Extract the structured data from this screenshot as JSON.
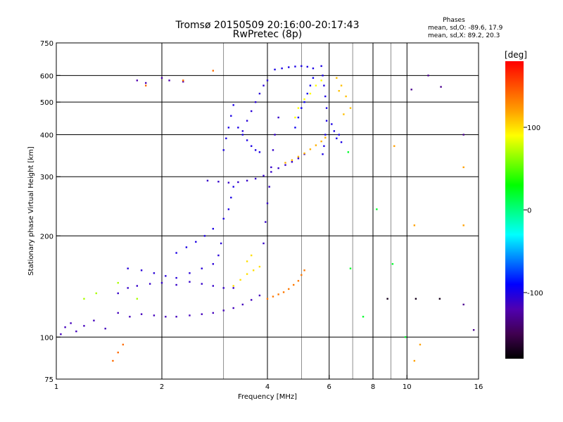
{
  "chart_data": {
    "type": "scatter",
    "title": "Tromsø 20150509 20:16:00-20:17:43",
    "subtitle": "RwPretec (8p)",
    "xlabel": "Frequency [MHz]",
    "ylabel": "Stationary phase Virtual Height [km]",
    "x_scale": "log",
    "y_scale": "log",
    "xlim": [
      1,
      16
    ],
    "ylim": [
      75,
      750
    ],
    "x_ticks": [
      1,
      2,
      4,
      6,
      8,
      10,
      16
    ],
    "x_gridlines": [
      2,
      4,
      6,
      8,
      10
    ],
    "x_minor_gridlines": [
      3,
      5,
      7,
      9
    ],
    "y_ticks": [
      75,
      100,
      200,
      300,
      400,
      500,
      600,
      750
    ],
    "y_gridlines": [
      100,
      200,
      300,
      400,
      500,
      600
    ],
    "grid": true,
    "phases_box": {
      "heading": "Phases",
      "line_o": "mean, sd,O: -89.6, 17.9",
      "line_x": "mean, sd,X:  89.2, 20.3"
    },
    "colorbar": {
      "label": "[deg]",
      "range": [
        -180,
        180
      ],
      "ticks": [
        100,
        0,
        -100
      ],
      "colors": [
        "#000000",
        "#400050",
        "#5000b0",
        "#0000ff",
        "#0080ff",
        "#00ffff",
        "#00ff80",
        "#00ff00",
        "#80ff00",
        "#ffff00",
        "#ffa000",
        "#ff5000",
        "#ff0000"
      ]
    },
    "series": [
      {
        "phase": -115,
        "points": [
          [
            1.03,
            102
          ],
          [
            1.06,
            107
          ],
          [
            1.1,
            110
          ],
          [
            1.14,
            104
          ],
          [
            1.2,
            108
          ],
          [
            1.28,
            112
          ],
          [
            1.38,
            106
          ],
          [
            1.5,
            118
          ],
          [
            1.62,
            115
          ],
          [
            1.75,
            117
          ],
          [
            1.9,
            116
          ],
          [
            2.05,
            115
          ],
          [
            2.2,
            115
          ],
          [
            2.4,
            116
          ],
          [
            2.6,
            117
          ],
          [
            2.8,
            118
          ],
          [
            3.0,
            120
          ],
          [
            3.2,
            122
          ],
          [
            3.4,
            125
          ],
          [
            3.6,
            129
          ],
          [
            3.8,
            133
          ]
        ]
      },
      {
        "phase": -110,
        "points": [
          [
            1.5,
            135
          ],
          [
            1.6,
            140
          ],
          [
            1.7,
            142
          ],
          [
            1.85,
            144
          ],
          [
            2.0,
            145
          ],
          [
            2.2,
            143
          ],
          [
            2.4,
            146
          ],
          [
            2.6,
            144
          ],
          [
            2.8,
            142
          ],
          [
            3.0,
            140
          ],
          [
            3.2,
            140
          ]
        ]
      },
      {
        "phase": -105,
        "points": [
          [
            1.6,
            160
          ],
          [
            1.75,
            158
          ],
          [
            1.9,
            155
          ],
          [
            2.05,
            152
          ],
          [
            2.2,
            150
          ],
          [
            2.4,
            155
          ],
          [
            2.6,
            160
          ],
          [
            2.8,
            165
          ],
          [
            2.9,
            175
          ],
          [
            2.95,
            190
          ]
        ]
      },
      {
        "phase": -100,
        "points": [
          [
            2.2,
            178
          ],
          [
            2.35,
            185
          ],
          [
            2.5,
            192
          ],
          [
            2.65,
            200
          ],
          [
            2.8,
            210
          ],
          [
            3.0,
            225
          ],
          [
            3.1,
            240
          ],
          [
            3.15,
            260
          ],
          [
            3.2,
            280
          ]
        ]
      },
      {
        "phase": -110,
        "points": [
          [
            2.7,
            292
          ],
          [
            2.9,
            290
          ],
          [
            3.1,
            288
          ],
          [
            3.3,
            289
          ],
          [
            3.5,
            292
          ],
          [
            3.7,
            296
          ],
          [
            3.9,
            302
          ],
          [
            4.1,
            310
          ],
          [
            4.3,
            318
          ],
          [
            4.5,
            325
          ],
          [
            4.7,
            332
          ],
          [
            4.9,
            340
          ],
          [
            5.1,
            350
          ]
        ]
      },
      {
        "phase": -100,
        "points": [
          [
            3.0,
            360
          ],
          [
            3.05,
            390
          ],
          [
            3.1,
            420
          ],
          [
            3.15,
            455
          ],
          [
            3.2,
            490
          ],
          [
            3.3,
            420
          ],
          [
            3.4,
            400
          ],
          [
            3.5,
            385
          ],
          [
            3.6,
            370
          ],
          [
            3.7,
            360
          ],
          [
            3.8,
            355
          ]
        ]
      },
      {
        "phase": -105,
        "points": [
          [
            3.4,
            410
          ],
          [
            3.5,
            440
          ],
          [
            3.6,
            470
          ],
          [
            3.7,
            500
          ],
          [
            3.8,
            530
          ],
          [
            3.9,
            560
          ],
          [
            4.0,
            580
          ]
        ]
      },
      {
        "phase": -110,
        "points": [
          [
            3.9,
            190
          ],
          [
            3.95,
            220
          ],
          [
            4.0,
            250
          ],
          [
            4.05,
            280
          ],
          [
            4.1,
            320
          ],
          [
            4.15,
            360
          ],
          [
            4.2,
            400
          ],
          [
            4.3,
            450
          ]
        ]
      },
      {
        "phase": -100,
        "points": [
          [
            5.7,
            640
          ],
          [
            5.75,
            600
          ],
          [
            5.8,
            560
          ],
          [
            5.85,
            520
          ],
          [
            5.9,
            480
          ],
          [
            5.9,
            440
          ],
          [
            5.85,
            400
          ],
          [
            5.8,
            370
          ],
          [
            5.75,
            350
          ]
        ]
      },
      {
        "phase": -95,
        "points": [
          [
            4.8,
            420
          ],
          [
            4.9,
            450
          ],
          [
            5.0,
            480
          ],
          [
            5.1,
            500
          ],
          [
            5.2,
            530
          ],
          [
            5.3,
            560
          ],
          [
            5.4,
            590
          ]
        ]
      },
      {
        "phase": -100,
        "points": [
          [
            4.2,
            625
          ],
          [
            4.4,
            630
          ],
          [
            4.6,
            635
          ],
          [
            4.8,
            638
          ],
          [
            5.0,
            640
          ],
          [
            5.2,
            637
          ],
          [
            5.4,
            630
          ]
        ]
      },
      {
        "phase": -120,
        "points": [
          [
            2.0,
            590
          ],
          [
            2.1,
            580
          ],
          [
            2.3,
            575
          ],
          [
            1.8,
            570
          ],
          [
            1.7,
            580
          ]
        ]
      },
      {
        "phase": 100,
        "points": [
          [
            3.2,
            142
          ],
          [
            3.35,
            148
          ],
          [
            3.5,
            154
          ],
          [
            3.65,
            158
          ],
          [
            3.8,
            162
          ],
          [
            3.5,
            168
          ],
          [
            3.6,
            175
          ]
        ]
      },
      {
        "phase": 135,
        "points": [
          [
            4.0,
            130
          ],
          [
            4.15,
            132
          ],
          [
            4.3,
            134
          ],
          [
            4.45,
            136
          ],
          [
            4.6,
            139
          ],
          [
            4.75,
            143
          ],
          [
            4.9,
            147
          ],
          [
            5.0,
            153
          ],
          [
            5.1,
            158
          ]
        ]
      },
      {
        "phase": 115,
        "points": [
          [
            4.5,
            330
          ],
          [
            4.7,
            336
          ],
          [
            4.9,
            344
          ],
          [
            5.1,
            352
          ],
          [
            5.3,
            362
          ],
          [
            5.5,
            372
          ],
          [
            5.7,
            382
          ],
          [
            5.85,
            392
          ]
        ]
      },
      {
        "phase": 90,
        "points": [
          [
            4.8,
            450
          ],
          [
            4.9,
            480
          ],
          [
            5.1,
            510
          ],
          [
            5.3,
            530
          ],
          [
            5.5,
            560
          ],
          [
            5.7,
            580
          ]
        ]
      },
      {
        "phase": 110,
        "points": [
          [
            6.3,
            590
          ],
          [
            6.5,
            560
          ],
          [
            6.7,
            520
          ],
          [
            6.9,
            480
          ],
          [
            6.6,
            460
          ],
          [
            6.4,
            540
          ]
        ]
      },
      {
        "phase": -100,
        "points": [
          [
            6.1,
            430
          ],
          [
            6.2,
            410
          ],
          [
            6.3,
            390
          ],
          [
            6.4,
            400
          ],
          [
            6.5,
            380
          ]
        ]
      },
      {
        "phase": -130,
        "points": [
          [
            11.5,
            600
          ],
          [
            14.5,
            400
          ],
          [
            14.5,
            125
          ],
          [
            15.5,
            105
          ],
          [
            12.5,
            555
          ],
          [
            10.3,
            545
          ]
        ]
      },
      {
        "phase": 120,
        "points": [
          [
            10.9,
            95
          ],
          [
            10.5,
            85
          ],
          [
            9.2,
            370
          ],
          [
            10.5,
            215
          ],
          [
            14.5,
            215
          ],
          [
            14.5,
            320
          ]
        ]
      },
      {
        "phase": 20,
        "points": [
          [
            9.9,
            100
          ],
          [
            7.5,
            115
          ],
          [
            6.9,
            160
          ],
          [
            8.2,
            240
          ],
          [
            9.1,
            165
          ],
          [
            6.8,
            355
          ]
        ]
      },
      {
        "phase": -170,
        "points": [
          [
            10.6,
            130
          ],
          [
            8.8,
            130
          ],
          [
            12.4,
            130
          ]
        ]
      },
      {
        "phase": 70,
        "points": [
          [
            1.7,
            130
          ],
          [
            1.5,
            145
          ],
          [
            1.3,
            135
          ],
          [
            1.2,
            130
          ]
        ]
      },
      {
        "phase": 140,
        "points": [
          [
            1.5,
            90
          ],
          [
            1.45,
            85
          ],
          [
            1.55,
            95
          ],
          [
            1.8,
            560
          ],
          [
            2.3,
            580
          ],
          [
            2.8,
            620
          ]
        ]
      }
    ]
  }
}
